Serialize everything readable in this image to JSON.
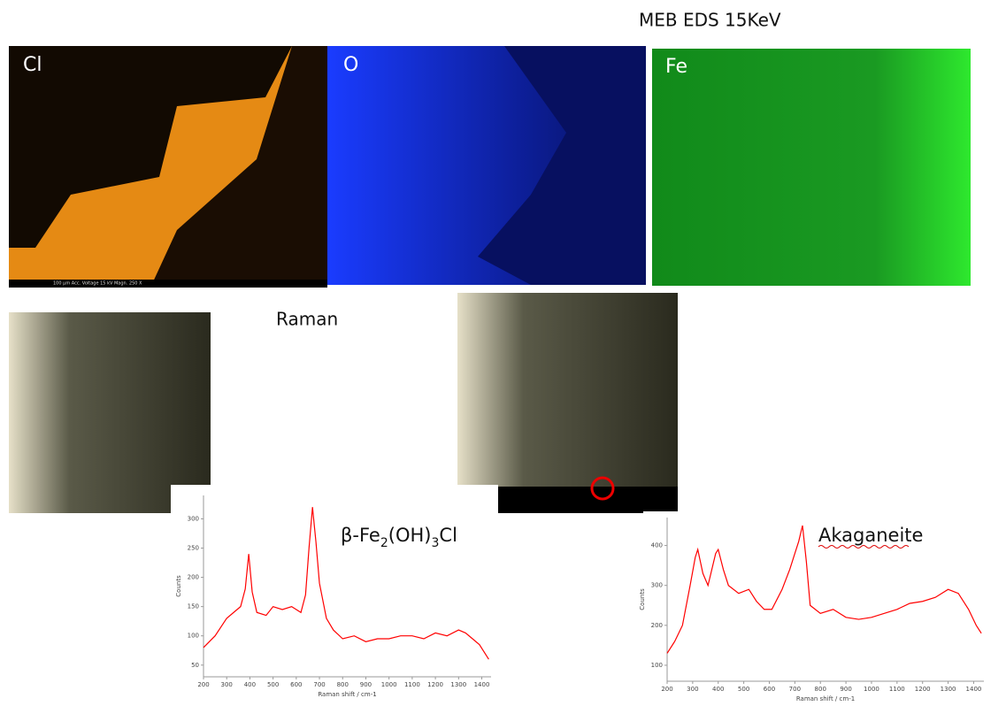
{
  "header": {
    "title": "MEB EDS 15KeV"
  },
  "eds_maps": [
    {
      "label": "Cl"
    },
    {
      "label": "O"
    },
    {
      "label": "Fe"
    }
  ],
  "eds_scale_text": "100 µm   Acc. Voltage 15 kV   Magn. 250 X",
  "raman": {
    "title": "Raman"
  },
  "spectra": [
    {
      "label_parts": [
        {
          "text": "β-Fe"
        },
        {
          "text": "2",
          "sub": true
        },
        {
          "text": "(OH)"
        },
        {
          "text": "3",
          "sub": true
        },
        {
          "text": "Cl"
        }
      ],
      "chart_data": {
        "type": "line",
        "xlabel": "Raman shift / cm-1",
        "ylabel": "Counts",
        "x": [
          200,
          250,
          300,
          330,
          360,
          380,
          395,
          410,
          430,
          470,
          500,
          540,
          580,
          620,
          640,
          655,
          670,
          685,
          700,
          730,
          760,
          800,
          850,
          900,
          950,
          1000,
          1050,
          1100,
          1150,
          1200,
          1250,
          1300,
          1330,
          1360,
          1390,
          1430
        ],
        "values": [
          80,
          100,
          130,
          140,
          150,
          180,
          240,
          175,
          140,
          135,
          150,
          145,
          150,
          140,
          170,
          250,
          320,
          260,
          190,
          130,
          110,
          95,
          100,
          90,
          95,
          95,
          100,
          100,
          95,
          105,
          100,
          110,
          105,
          95,
          85,
          60
        ],
        "color": "#ff0000",
        "xlim": [
          200,
          1440
        ],
        "ylim": [
          30,
          340
        ],
        "xticks": [
          200,
          300,
          400,
          500,
          600,
          700,
          800,
          900,
          1000,
          1100,
          1200,
          1300,
          1400
        ],
        "yticks": [
          50,
          100,
          150,
          200,
          250,
          300
        ]
      }
    },
    {
      "label_parts": [
        {
          "text": "Akaganeite"
        }
      ],
      "chart_data": {
        "type": "line",
        "xlabel": "Raman shift / cm-1",
        "ylabel": "Counts",
        "x": [
          200,
          230,
          260,
          290,
          310,
          320,
          340,
          360,
          390,
          400,
          420,
          440,
          480,
          520,
          550,
          580,
          610,
          650,
          680,
          700,
          715,
          730,
          745,
          760,
          800,
          850,
          900,
          950,
          1000,
          1050,
          1100,
          1150,
          1200,
          1250,
          1300,
          1340,
          1380,
          1410,
          1430
        ],
        "values": [
          130,
          160,
          200,
          300,
          370,
          390,
          330,
          300,
          380,
          390,
          340,
          300,
          280,
          290,
          260,
          240,
          240,
          290,
          340,
          380,
          410,
          450,
          360,
          250,
          230,
          240,
          220,
          215,
          220,
          230,
          240,
          255,
          260,
          270,
          290,
          280,
          240,
          200,
          180
        ],
        "color": "#ff0000",
        "xlim": [
          200,
          1440
        ],
        "ylim": [
          60,
          470
        ],
        "xticks": [
          200,
          300,
          400,
          500,
          600,
          700,
          800,
          900,
          1000,
          1100,
          1200,
          1300,
          1400
        ],
        "yticks": [
          100,
          200,
          300,
          400
        ]
      }
    }
  ]
}
